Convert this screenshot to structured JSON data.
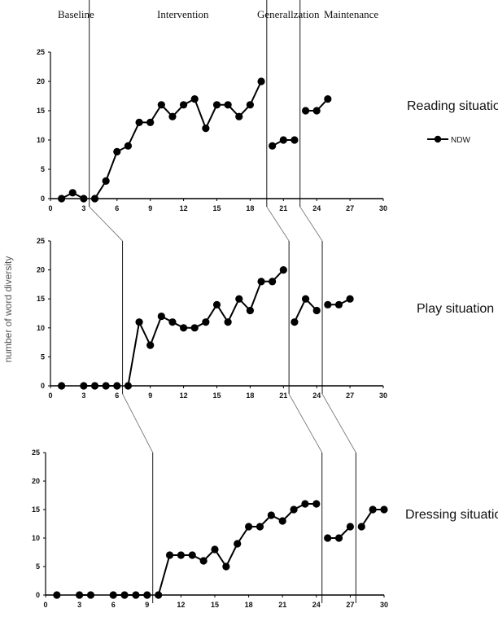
{
  "phases": [
    "Baseline",
    "Intervention",
    "Generallzation",
    "Maintenance"
  ],
  "y_axis_label": "number of word diversity",
  "legend": {
    "label": "NDW"
  },
  "colors": {
    "series": "#000000",
    "axis": "#000000",
    "connector": "#7a7a7a"
  },
  "chart_data": [
    {
      "type": "line",
      "title": "Reading situation",
      "xlim": [
        0,
        30
      ],
      "ylim": [
        0,
        25
      ],
      "x_ticks": [
        0,
        3,
        6,
        9,
        12,
        15,
        18,
        21,
        24,
        27,
        30
      ],
      "y_ticks": [
        0,
        5,
        10,
        15,
        20,
        25
      ],
      "y_tick_labels": true,
      "phase_changes": [
        3.5,
        19.5,
        22.5
      ],
      "series": [
        {
          "name": "NDW",
          "segments": [
            [
              [
                1,
                0
              ],
              [
                2,
                1
              ],
              [
                3,
                0
              ]
            ],
            [
              [
                4,
                0
              ],
              [
                5,
                3
              ],
              [
                6,
                8
              ],
              [
                7,
                9
              ],
              [
                8,
                13
              ],
              [
                9,
                13
              ],
              [
                10,
                16
              ],
              [
                11,
                14
              ],
              [
                12,
                16
              ],
              [
                13,
                17
              ],
              [
                14,
                12
              ],
              [
                15,
                16
              ],
              [
                16,
                16
              ],
              [
                17,
                14
              ],
              [
                18,
                16
              ],
              [
                19,
                20
              ]
            ],
            [
              [
                20,
                9
              ],
              [
                21,
                10
              ],
              [
                22,
                10
              ]
            ],
            [
              [
                23,
                15
              ],
              [
                24,
                15
              ],
              [
                25,
                17
              ]
            ]
          ]
        }
      ]
    },
    {
      "type": "line",
      "title": "Play situation",
      "xlim": [
        0,
        30
      ],
      "ylim": [
        0,
        25
      ],
      "x_ticks": [
        0,
        3,
        6,
        9,
        12,
        15,
        18,
        21,
        24,
        27,
        30
      ],
      "y_ticks": [
        0,
        5,
        10,
        15,
        20,
        25
      ],
      "y_tick_labels": true,
      "phase_changes": [
        6.5,
        21.5,
        24.5
      ],
      "series": [
        {
          "name": "NDW",
          "segments": [
            [
              [
                1,
                0
              ]
            ],
            [
              [
                3,
                0
              ],
              [
                4,
                0
              ],
              [
                5,
                0
              ],
              [
                6,
                0
              ]
            ],
            [
              [
                7,
                0
              ],
              [
                8,
                11
              ],
              [
                9,
                7
              ],
              [
                10,
                12
              ],
              [
                11,
                11
              ],
              [
                12,
                10
              ],
              [
                13,
                10
              ],
              [
                14,
                11
              ],
              [
                15,
                14
              ],
              [
                16,
                11
              ],
              [
                17,
                15
              ],
              [
                18,
                13
              ],
              [
                19,
                18
              ],
              [
                20,
                18
              ],
              [
                21,
                20
              ]
            ],
            [
              [
                22,
                11
              ],
              [
                23,
                15
              ],
              [
                24,
                13
              ]
            ],
            [
              [
                25,
                14
              ],
              [
                26,
                14
              ],
              [
                27,
                15
              ]
            ]
          ]
        }
      ]
    },
    {
      "type": "line",
      "title": "Dressing situation",
      "xlim": [
        0,
        30
      ],
      "ylim": [
        0,
        25
      ],
      "x_ticks": [
        0,
        3,
        6,
        9,
        12,
        15,
        18,
        21,
        24,
        27,
        30
      ],
      "y_ticks": [
        0,
        5,
        10,
        15,
        20,
        25
      ],
      "y_tick_labels": true,
      "phase_changes": [
        9.5,
        24.5,
        27.5
      ],
      "series": [
        {
          "name": "NDW",
          "segments": [
            [
              [
                1,
                0
              ]
            ],
            [
              [
                3,
                0
              ],
              [
                4,
                0
              ]
            ],
            [
              [
                6,
                0
              ],
              [
                7,
                0
              ],
              [
                8,
                0
              ],
              [
                9,
                0
              ]
            ],
            [
              [
                10,
                0
              ],
              [
                11,
                7
              ],
              [
                12,
                7
              ],
              [
                13,
                7
              ],
              [
                14,
                6
              ],
              [
                15,
                8
              ],
              [
                16,
                5
              ],
              [
                17,
                9
              ],
              [
                18,
                12
              ],
              [
                19,
                12
              ],
              [
                20,
                14
              ],
              [
                21,
                13
              ],
              [
                22,
                15
              ],
              [
                23,
                16
              ],
              [
                24,
                16
              ]
            ],
            [
              [
                25,
                10
              ],
              [
                26,
                10
              ],
              [
                27,
                12
              ]
            ],
            [
              [
                28,
                12
              ],
              [
                29,
                15
              ],
              [
                30,
                15
              ]
            ]
          ]
        }
      ]
    }
  ]
}
